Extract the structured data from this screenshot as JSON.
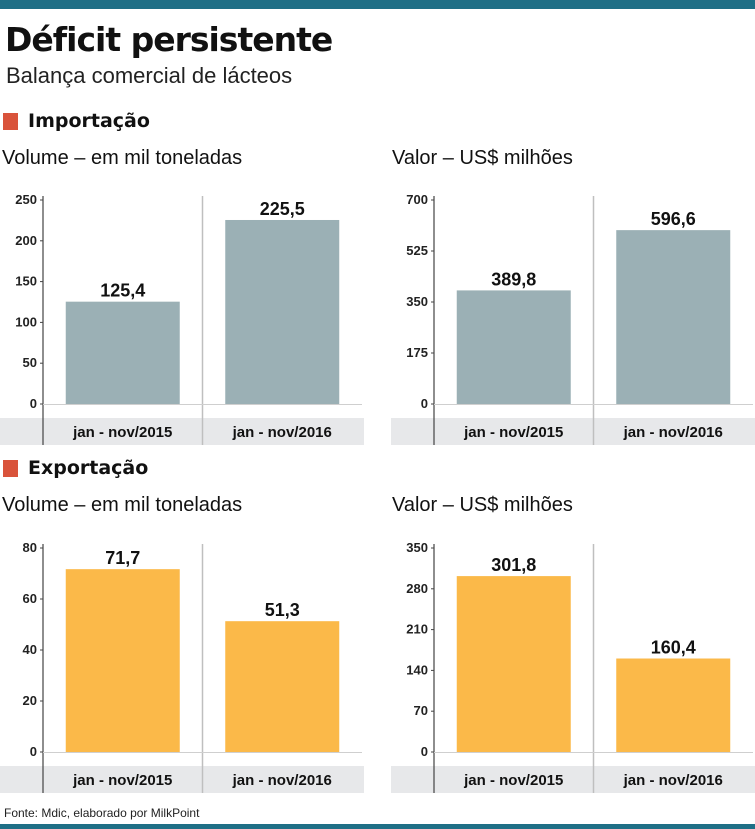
{
  "title": "Déficit persistente",
  "subtitle": "Balança comercial de lácteos",
  "colors": {
    "import": "#9bb0b5",
    "export": "#fbb949",
    "marker": "#d9533b",
    "band": "#e7e8ea",
    "accent": "#1f6f86"
  },
  "sections": {
    "import": {
      "label": "Importação"
    },
    "export": {
      "label": "Exportação"
    }
  },
  "source": "Fonte: Mdic, elaborado por MilkPoint",
  "chart_data": [
    {
      "id": "imp-volume",
      "type": "bar",
      "title": "Volume  – em mil toneladas",
      "categories": [
        "jan - nov/2015",
        "jan - nov/2016"
      ],
      "values": [
        125.4,
        225.5
      ],
      "value_labels": [
        "125,4",
        "225,5"
      ],
      "yticks": [
        0,
        50,
        100,
        150,
        200,
        250
      ],
      "ylim": [
        0,
        250
      ],
      "color": "#9bb0b5"
    },
    {
      "id": "imp-valor",
      "type": "bar",
      "title": "Valor – US$ milhões",
      "categories": [
        "jan - nov/2015",
        "jan - nov/2016"
      ],
      "values": [
        389.8,
        596.6
      ],
      "value_labels": [
        "389,8",
        "596,6"
      ],
      "yticks": [
        0,
        175,
        350,
        525,
        700
      ],
      "ylim": [
        0,
        700
      ],
      "color": "#9bb0b5"
    },
    {
      "id": "exp-volume",
      "type": "bar",
      "title": "Volume  – em mil toneladas",
      "categories": [
        "jan - nov/2015",
        "jan - nov/2016"
      ],
      "values": [
        71.7,
        51.3
      ],
      "value_labels": [
        "71,7",
        "51,3"
      ],
      "yticks": [
        0,
        20,
        40,
        60,
        80
      ],
      "ylim": [
        0,
        80
      ],
      "color": "#fbb949"
    },
    {
      "id": "exp-valor",
      "type": "bar",
      "title": "Valor – US$ milhões",
      "categories": [
        "jan - nov/2015",
        "jan - nov/2016"
      ],
      "values": [
        301.8,
        160.4
      ],
      "value_labels": [
        "301,8",
        "160,4"
      ],
      "yticks": [
        0,
        70,
        140,
        210,
        280,
        350
      ],
      "ylim": [
        0,
        350
      ],
      "color": "#fbb949"
    }
  ]
}
